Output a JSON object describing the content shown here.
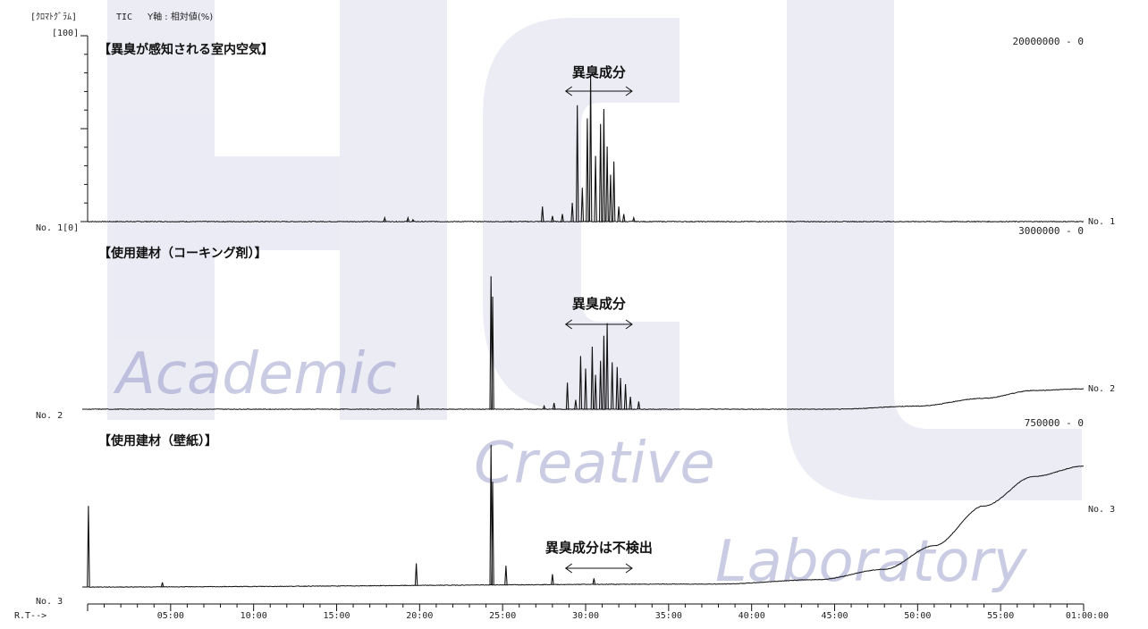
{
  "header": {
    "chromatogram_label": "[ｸﾛﾏﾄｸﾞﾗﾑ]",
    "tic_label": "TIC",
    "yaxis_desc": "Y軸 : 相対値(%)",
    "y_top_label": "[100]"
  },
  "watermark": {
    "logo_text": "HCL",
    "line1": "Academic",
    "line2": "Creative",
    "line3": "Laboratory",
    "color": "#6b6fb5"
  },
  "xaxis": {
    "prefix": "R.T-->",
    "ticks": [
      "05:00",
      "10:00",
      "15:00",
      "20:00",
      "25:00",
      "30:00",
      "35:00",
      "40:00",
      "45:00",
      "50:00",
      "55:00",
      "01:00:00"
    ]
  },
  "chart_data": [
    {
      "type": "line",
      "title": "【異臭が感知される室内空気】",
      "scale_label": "20000000 - 0",
      "left_label": "No. 1[0]",
      "right_label": "No. 1",
      "annotation": "異臭成分",
      "annotation_range": [
        28.8,
        32.8
      ],
      "baseline_rise": [],
      "peaks": [
        [
          17.9,
          0.02
        ],
        [
          19.3,
          0.02
        ],
        [
          19.6,
          0.01
        ],
        [
          27.4,
          0.08
        ],
        [
          28.0,
          0.03
        ],
        [
          28.6,
          0.04
        ],
        [
          29.2,
          0.1
        ],
        [
          29.5,
          0.62
        ],
        [
          29.8,
          0.18
        ],
        [
          30.1,
          0.55
        ],
        [
          30.3,
          0.78
        ],
        [
          30.6,
          0.35
        ],
        [
          30.9,
          0.52
        ],
        [
          31.1,
          0.6
        ],
        [
          31.3,
          0.4
        ],
        [
          31.5,
          0.25
        ],
        [
          31.7,
          0.32
        ],
        [
          32.0,
          0.08
        ],
        [
          32.3,
          0.04
        ],
        [
          32.9,
          0.02
        ]
      ]
    },
    {
      "type": "line",
      "title": "【使用建材（コーキング剤）】",
      "scale_label": "3000000 - 0",
      "left_label": "No. 2",
      "right_label": "No. 2",
      "annotation": "異臭成分",
      "annotation_range": [
        28.8,
        32.8
      ],
      "baseline_rise": [
        [
          0,
          0
        ],
        [
          45,
          0.0
        ],
        [
          50,
          0.02
        ],
        [
          54,
          0.07
        ],
        [
          57,
          0.12
        ],
        [
          60,
          0.13
        ]
      ],
      "peaks": [
        [
          19.9,
          0.09
        ],
        [
          24.3,
          0.85
        ],
        [
          24.4,
          0.72
        ],
        [
          27.5,
          0.02
        ],
        [
          28.1,
          0.04
        ],
        [
          28.9,
          0.17
        ],
        [
          29.4,
          0.06
        ],
        [
          29.7,
          0.34
        ],
        [
          30.0,
          0.26
        ],
        [
          30.4,
          0.4
        ],
        [
          30.6,
          0.22
        ],
        [
          30.9,
          0.31
        ],
        [
          31.1,
          0.47
        ],
        [
          31.3,
          0.55
        ],
        [
          31.6,
          0.3
        ],
        [
          31.9,
          0.27
        ],
        [
          32.1,
          0.2
        ],
        [
          32.4,
          0.16
        ],
        [
          32.7,
          0.08
        ],
        [
          33.2,
          0.05
        ]
      ]
    },
    {
      "type": "line",
      "title": "【使用建材（壁紙）】",
      "scale_label": "750000 - 0",
      "left_label": "No. 3",
      "right_label": "No. 3",
      "annotation": "異臭成分は不検出",
      "annotation_range": [
        28.8,
        32.8
      ],
      "baseline_rise": [
        [
          0,
          0
        ],
        [
          38,
          0.02
        ],
        [
          44,
          0.05
        ],
        [
          48,
          0.12
        ],
        [
          51,
          0.28
        ],
        [
          54,
          0.55
        ],
        [
          57,
          0.75
        ],
        [
          60,
          0.82
        ]
      ],
      "peaks": [
        [
          0.05,
          0.55
        ],
        [
          4.5,
          0.03
        ],
        [
          19.8,
          0.15
        ],
        [
          24.3,
          0.95
        ],
        [
          24.4,
          0.7
        ],
        [
          25.2,
          0.13
        ],
        [
          28.0,
          0.07
        ],
        [
          30.5,
          0.04
        ]
      ]
    }
  ]
}
